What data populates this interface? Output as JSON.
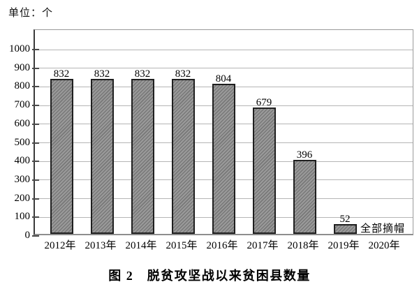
{
  "chart": {
    "unit_label": "单位：个",
    "title": "图 2　脱贫攻坚战以来贫困县数量",
    "annotation": "全部摘帽"
  },
  "chart_data": {
    "type": "bar",
    "title": "图 2 脱贫攻坚战以来贫困县数量",
    "unit_label": "单位：个",
    "categories": [
      "2012年",
      "2013年",
      "2014年",
      "2015年",
      "2016年",
      "2017年",
      "2018年",
      "2019年",
      "2020年"
    ],
    "values": [
      832,
      832,
      832,
      832,
      804,
      679,
      396,
      52,
      0
    ],
    "bar_labels": [
      "832",
      "832",
      "832",
      "832",
      "804",
      "679",
      "396",
      "52",
      ""
    ],
    "annotations": [
      {
        "text": "全部摘帽",
        "category": "2020年",
        "value": 0
      }
    ],
    "xlabel": "",
    "ylabel": "",
    "ylim": [
      0,
      1100
    ],
    "yticks": [
      0,
      100,
      200,
      300,
      400,
      500,
      600,
      700,
      800,
      900,
      1000
    ],
    "grid": true,
    "legend": false,
    "bar_color": "#9a9a9a",
    "bar_hatch_color": "#787878",
    "bar_border_color": "#1f1f1f",
    "gridline_color": "#b5b5b5",
    "text_color": "#000000"
  }
}
